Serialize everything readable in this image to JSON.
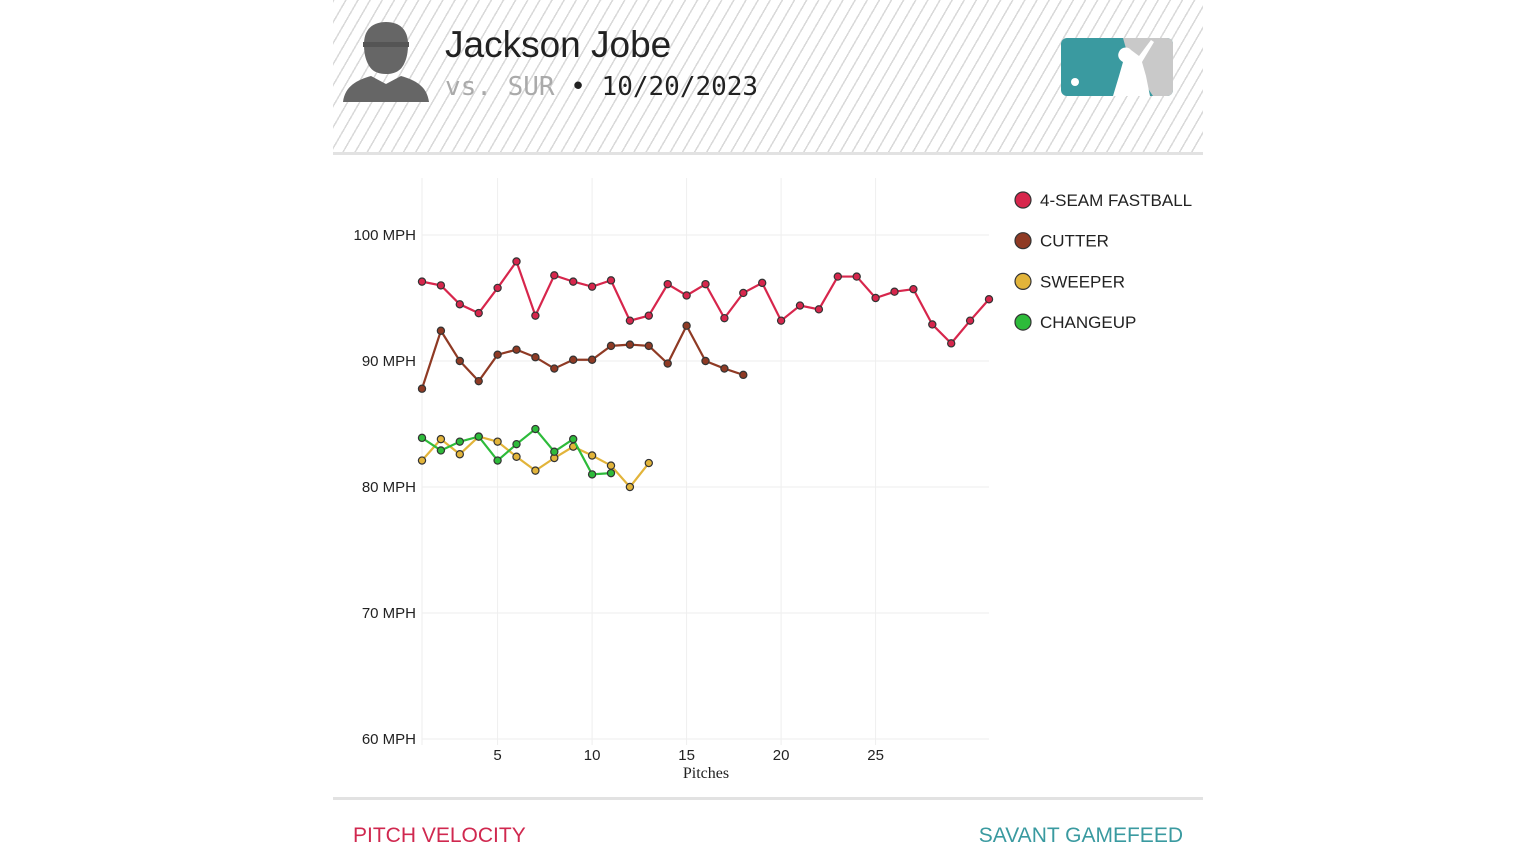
{
  "header": {
    "player_name": "Jackson Jobe",
    "opponent_prefix": "vs. SUR",
    "separator": "•",
    "date": "10/20/2023"
  },
  "footer": {
    "left_label": "PITCH VELOCITY",
    "right_link": "SAVANT GAMEFEED"
  },
  "icons": {
    "player": "player-silhouette-icon",
    "logo": "mlb-logo-icon"
  },
  "chart_data": {
    "type": "line",
    "title": "Pitch Velocity",
    "xlabel": "Pitches",
    "ylabel": "",
    "xlim": [
      1,
      31
    ],
    "ylim": [
      60,
      104
    ],
    "x_ticks": [
      5,
      10,
      15,
      20,
      25
    ],
    "x_tick_labels": [
      "5",
      "10",
      "15",
      "20",
      "25"
    ],
    "y_ticks": [
      60,
      70,
      80,
      90,
      100
    ],
    "y_tick_labels": [
      "60 MPH",
      "70 MPH",
      "80 MPH",
      "90 MPH",
      "100 MPH"
    ],
    "grid": true,
    "legend_position": "top-right",
    "series": [
      {
        "name": "4-SEAM FASTBALL",
        "color": "#d7264c",
        "values": [
          96.3,
          96.0,
          94.5,
          93.8,
          95.8,
          97.9,
          93.6,
          96.8,
          96.3,
          95.9,
          96.4,
          93.2,
          93.6,
          96.1,
          95.2,
          96.1,
          93.4,
          95.4,
          96.2,
          93.2,
          94.4,
          94.1,
          96.7,
          96.7,
          95.0,
          95.5,
          95.7,
          92.9,
          91.4,
          93.2,
          94.9
        ]
      },
      {
        "name": "CUTTER",
        "color": "#8f3a24",
        "values": [
          87.8,
          92.4,
          90.0,
          88.4,
          90.5,
          90.9,
          90.3,
          89.4,
          90.1,
          90.1,
          91.2,
          91.3,
          91.2,
          89.8,
          92.8,
          90.0,
          89.4,
          88.9
        ]
      },
      {
        "name": "SWEEPER",
        "color": "#e2b43a",
        "values": [
          82.1,
          83.8,
          82.6,
          84.0,
          83.6,
          82.4,
          81.3,
          82.3,
          83.2,
          82.5,
          81.7,
          80.0,
          81.9
        ]
      },
      {
        "name": "CHANGEUP",
        "color": "#2dbb3a",
        "values": [
          83.9,
          82.9,
          83.6,
          84.0,
          82.1,
          83.4,
          84.6,
          82.8,
          83.8,
          81.0,
          81.1
        ]
      }
    ]
  }
}
